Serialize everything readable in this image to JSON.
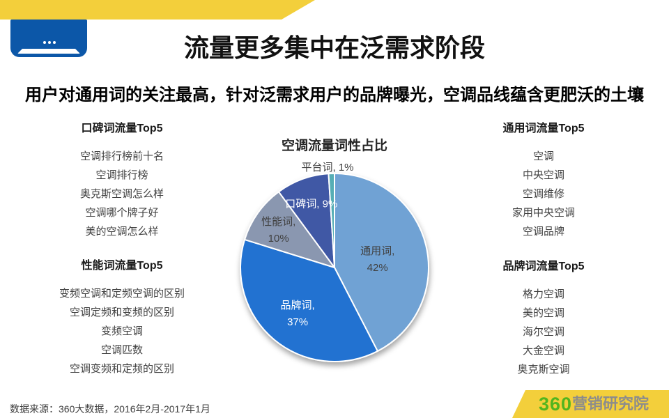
{
  "header": {
    "title": "流量更多集中在泛需求阶段"
  },
  "subtitle": "用户对通用词的关注最高，针对泛需求用户的品牌曝光，空调品线蕴含更肥沃的土壤",
  "lists": {
    "koubei": {
      "title": "口碑词流量Top5",
      "items": [
        "空调排行榜前十名",
        "空调排行榜",
        "奥克斯空调怎么样",
        "空调哪个牌子好",
        "美的空调怎么样"
      ]
    },
    "xingneng": {
      "title": "性能词流量Top5",
      "items": [
        "变频空调和定频空调的区别",
        "空调定频和变频的区别",
        "变频空调",
        "空调匹数",
        "空调变频和定频的区别"
      ]
    },
    "tongyong": {
      "title": "通用词流量Top5",
      "items": [
        "空调",
        "中央空调",
        "空调维修",
        "家用中央空调",
        "空调品牌"
      ]
    },
    "pinpai": {
      "title": "品牌词流量Top5",
      "items": [
        "格力空调",
        "美的空调",
        "海尔空调",
        "大金空调",
        "奥克斯空调"
      ]
    }
  },
  "chart_data": {
    "type": "pie",
    "title": "空调流量词性占比",
    "labels": [
      "通用词",
      "品牌词",
      "性能词",
      "口碑词",
      "平台词"
    ],
    "values": [
      42,
      37,
      10,
      9,
      1
    ],
    "unit": "%",
    "colors": [
      "#6FA2D4",
      "#2172D1",
      "#8A97B0",
      "#4159A5",
      "#57AEB5"
    ],
    "label_text_colors": [
      "#404040",
      "#ffffff",
      "#404040",
      "#ffffff",
      "#404040"
    ],
    "data_labels": [
      "通用词, 42%",
      "品牌词, 37%",
      "性能词, 10%",
      "口碑词, 9%",
      "平台词, 1%"
    ],
    "start_angle_deg": 0,
    "direction": "clockwise",
    "legend": "none"
  },
  "footer": {
    "source": "数据来源：360大数据，2016年2月-2017年1月",
    "logo_360": "360",
    "logo_suffix": "营销研究院"
  },
  "colors": {
    "accent_yellow": "#F3CF3B",
    "icon_blue": "#0C57A8",
    "logo_green": "#52B51E",
    "logo_gray": "#8C8C8C"
  }
}
